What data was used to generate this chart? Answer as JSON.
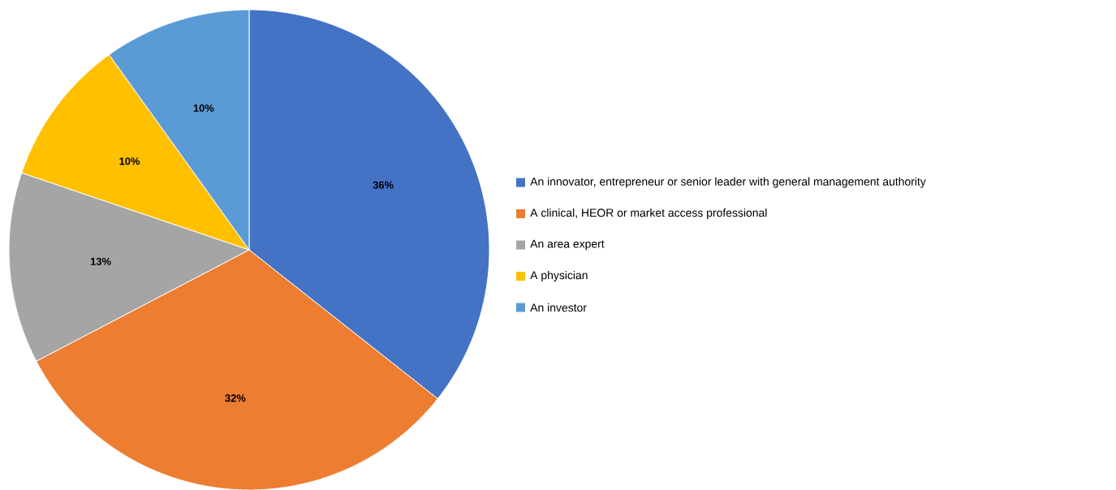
{
  "chart_data": {
    "type": "pie",
    "categories": [
      "An innovator, entrepreneur or senior leader with general management authority",
      "A clinical, HEOR or market access professional",
      "An area expert",
      "A physician",
      "An investor"
    ],
    "values": [
      36,
      32,
      13,
      10,
      10
    ],
    "colors": [
      "#4472c4",
      "#ed7d31",
      "#a5a5a5",
      "#ffc000",
      "#5b9bd5"
    ],
    "value_labels": [
      "36%",
      "32%",
      "13%",
      "10%",
      "10%"
    ],
    "legend": "right"
  }
}
